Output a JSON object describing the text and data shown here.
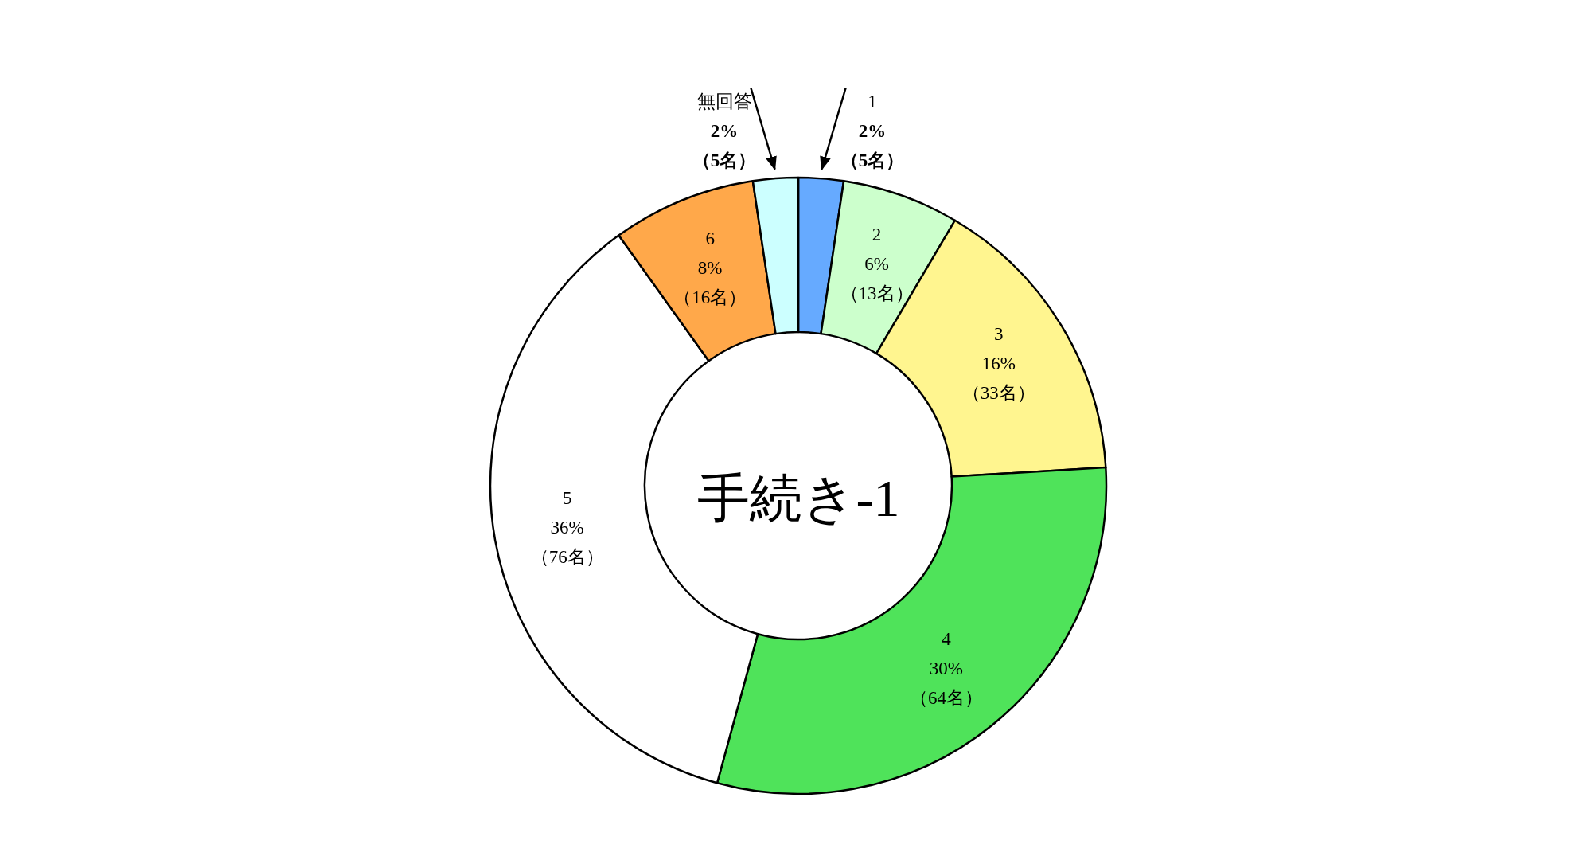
{
  "chart_data": {
    "type": "donut",
    "title": "手続き-1",
    "categories": [
      "1",
      "2",
      "3",
      "4",
      "5",
      "6",
      "無回答"
    ],
    "values": [
      5,
      13,
      33,
      64,
      76,
      16,
      5
    ],
    "value_labels": [
      "2%\n（5名）",
      "6%\n（13名）",
      "16%\n（33名）",
      "30%\n（64名）",
      "36%\n（76名）",
      "8%\n（16名）",
      "2%\n（5名）"
    ],
    "colors": [
      "#66aaff",
      "#ccffcc",
      "#fff58f",
      "#4fe35a",
      "#ffffff",
      "#ffa84a",
      "#ccffff"
    ]
  }
}
